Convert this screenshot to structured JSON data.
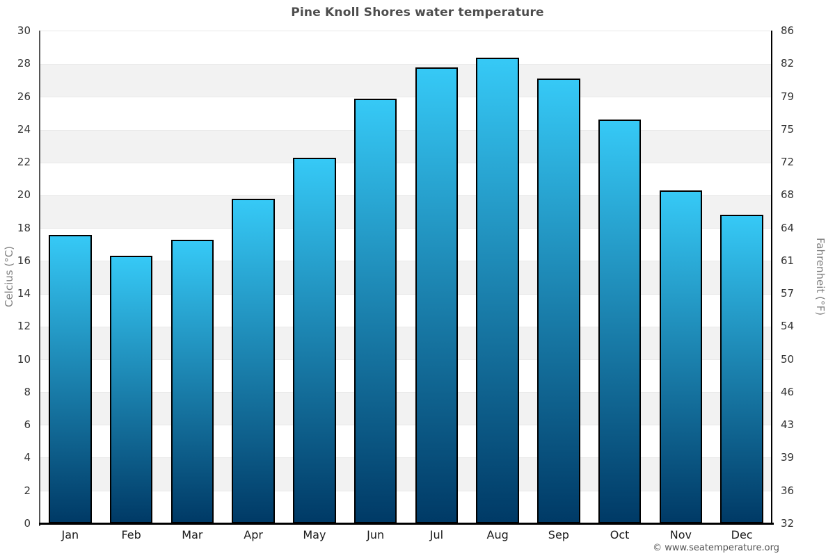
{
  "page": {
    "title": "Pine Knoll Shores water temperature",
    "copyright": "© www.seatemperature.org"
  },
  "axes": {
    "left_label": "Celcius (°C)",
    "right_label": "Fahrenheit (°F)"
  },
  "colors": {
    "bar_gradient_top": "#36c9f6",
    "bar_gradient_bottom": "#003a66",
    "bar_border": "#000000",
    "band_alt": "#f2f2f2",
    "band_base": "#ffffff",
    "title_text": "#4d4d4d",
    "tick_text": "#333333",
    "month_text": "#1a1a1a",
    "axis_label_text": "#808080",
    "copyright_text": "#555555"
  },
  "chart_data": {
    "type": "bar",
    "title": "Pine Knoll Shores water temperature",
    "categories": [
      "Jan",
      "Feb",
      "Mar",
      "Apr",
      "May",
      "Jun",
      "Jul",
      "Aug",
      "Sep",
      "Oct",
      "Nov",
      "Dec"
    ],
    "values": [
      17.6,
      16.3,
      17.3,
      19.8,
      22.3,
      25.9,
      27.8,
      28.4,
      27.1,
      24.6,
      20.3,
      18.8
    ],
    "unit": "°C",
    "xlabel": "",
    "ylabel_left": "Celcius (°C)",
    "ylabel_right": "Fahrenheit (°F)",
    "ylim": [
      0,
      30
    ],
    "yticks_celsius": [
      30,
      28,
      26,
      24,
      22,
      20,
      18,
      16,
      14,
      12,
      10,
      8,
      6,
      4,
      2,
      0
    ],
    "yticks_fahrenheit": [
      86,
      82,
      79,
      75,
      72,
      68,
      64,
      61,
      57,
      54,
      50,
      46,
      43,
      39,
      36,
      32
    ],
    "grid": "alternating-horizontal-bands-every-2C",
    "legend": "none"
  }
}
